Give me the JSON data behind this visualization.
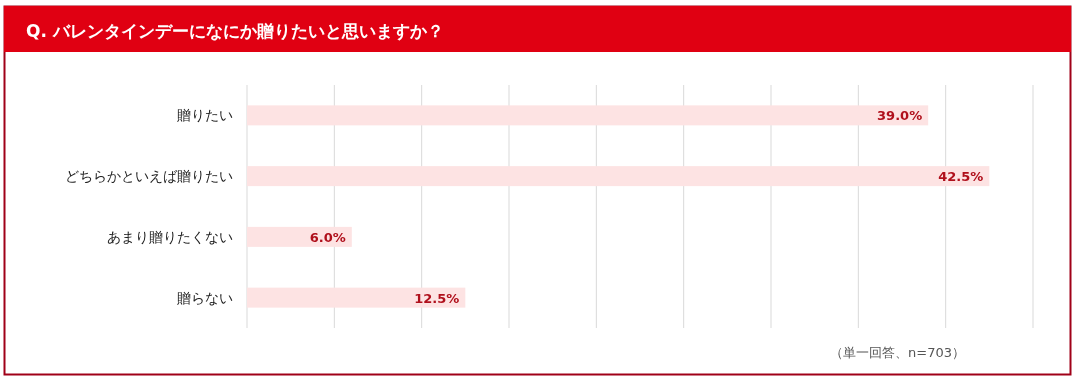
{
  "chart_data": {
    "type": "bar",
    "orientation": "horizontal",
    "title": "Q. バレンタインデーになにか贈りたいと思いますか？",
    "categories": [
      "贈りたい",
      "どちらかといえば贈りたい",
      "あまり贈りたくない",
      "贈らない"
    ],
    "values": [
      39.0,
      42.5,
      6.0,
      12.5
    ],
    "value_labels": [
      "39.0%",
      "42.5%",
      "6.0%",
      "12.5%"
    ],
    "color": "#fde3e3",
    "xlim": [
      0,
      45
    ],
    "xticks": [
      {
        "value": 0,
        "label": null
      },
      {
        "value": 5,
        "label": null
      },
      {
        "value": 10,
        "label": null
      },
      {
        "value": 15,
        "label": null
      },
      {
        "value": 20,
        "label": null
      },
      {
        "value": 25,
        "label": null
      },
      {
        "value": 30,
        "label": null
      },
      {
        "value": 35,
        "label": null
      },
      {
        "value": 40,
        "label": null
      },
      {
        "value": 45,
        "label": null
      }
    ],
    "grid": "x",
    "annotations": [
      "（単一回答、n=703）"
    ]
  }
}
